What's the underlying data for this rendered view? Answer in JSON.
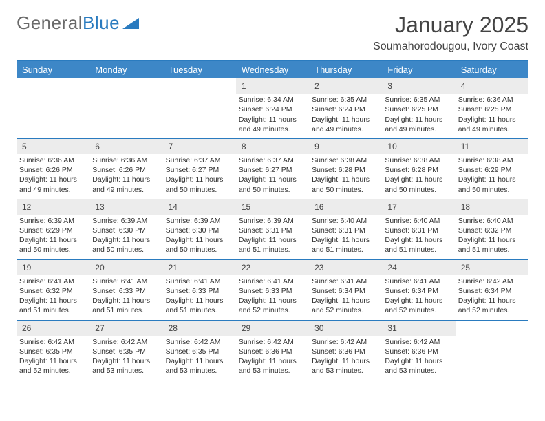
{
  "logo": {
    "text1": "General",
    "text2": "Blue"
  },
  "title": "January 2025",
  "location": "Soumahorodougou, Ivory Coast",
  "colors": {
    "header_bg": "#3d87c7",
    "header_text": "#ffffff",
    "border": "#2a7bbf",
    "daynum_bg": "#ececec",
    "text": "#333333",
    "logo_gray": "#6a6a6a",
    "logo_blue": "#2a7bbf"
  },
  "day_names": [
    "Sunday",
    "Monday",
    "Tuesday",
    "Wednesday",
    "Thursday",
    "Friday",
    "Saturday"
  ],
  "weeks": [
    [
      null,
      null,
      null,
      {
        "n": "1",
        "sr": "6:34 AM",
        "ss": "6:24 PM",
        "dl": "11 hours and 49 minutes."
      },
      {
        "n": "2",
        "sr": "6:35 AM",
        "ss": "6:24 PM",
        "dl": "11 hours and 49 minutes."
      },
      {
        "n": "3",
        "sr": "6:35 AM",
        "ss": "6:25 PM",
        "dl": "11 hours and 49 minutes."
      },
      {
        "n": "4",
        "sr": "6:36 AM",
        "ss": "6:25 PM",
        "dl": "11 hours and 49 minutes."
      }
    ],
    [
      {
        "n": "5",
        "sr": "6:36 AM",
        "ss": "6:26 PM",
        "dl": "11 hours and 49 minutes."
      },
      {
        "n": "6",
        "sr": "6:36 AM",
        "ss": "6:26 PM",
        "dl": "11 hours and 49 minutes."
      },
      {
        "n": "7",
        "sr": "6:37 AM",
        "ss": "6:27 PM",
        "dl": "11 hours and 50 minutes."
      },
      {
        "n": "8",
        "sr": "6:37 AM",
        "ss": "6:27 PM",
        "dl": "11 hours and 50 minutes."
      },
      {
        "n": "9",
        "sr": "6:38 AM",
        "ss": "6:28 PM",
        "dl": "11 hours and 50 minutes."
      },
      {
        "n": "10",
        "sr": "6:38 AM",
        "ss": "6:28 PM",
        "dl": "11 hours and 50 minutes."
      },
      {
        "n": "11",
        "sr": "6:38 AM",
        "ss": "6:29 PM",
        "dl": "11 hours and 50 minutes."
      }
    ],
    [
      {
        "n": "12",
        "sr": "6:39 AM",
        "ss": "6:29 PM",
        "dl": "11 hours and 50 minutes."
      },
      {
        "n": "13",
        "sr": "6:39 AM",
        "ss": "6:30 PM",
        "dl": "11 hours and 50 minutes."
      },
      {
        "n": "14",
        "sr": "6:39 AM",
        "ss": "6:30 PM",
        "dl": "11 hours and 50 minutes."
      },
      {
        "n": "15",
        "sr": "6:39 AM",
        "ss": "6:31 PM",
        "dl": "11 hours and 51 minutes."
      },
      {
        "n": "16",
        "sr": "6:40 AM",
        "ss": "6:31 PM",
        "dl": "11 hours and 51 minutes."
      },
      {
        "n": "17",
        "sr": "6:40 AM",
        "ss": "6:31 PM",
        "dl": "11 hours and 51 minutes."
      },
      {
        "n": "18",
        "sr": "6:40 AM",
        "ss": "6:32 PM",
        "dl": "11 hours and 51 minutes."
      }
    ],
    [
      {
        "n": "19",
        "sr": "6:41 AM",
        "ss": "6:32 PM",
        "dl": "11 hours and 51 minutes."
      },
      {
        "n": "20",
        "sr": "6:41 AM",
        "ss": "6:33 PM",
        "dl": "11 hours and 51 minutes."
      },
      {
        "n": "21",
        "sr": "6:41 AM",
        "ss": "6:33 PM",
        "dl": "11 hours and 51 minutes."
      },
      {
        "n": "22",
        "sr": "6:41 AM",
        "ss": "6:33 PM",
        "dl": "11 hours and 52 minutes."
      },
      {
        "n": "23",
        "sr": "6:41 AM",
        "ss": "6:34 PM",
        "dl": "11 hours and 52 minutes."
      },
      {
        "n": "24",
        "sr": "6:41 AM",
        "ss": "6:34 PM",
        "dl": "11 hours and 52 minutes."
      },
      {
        "n": "25",
        "sr": "6:42 AM",
        "ss": "6:34 PM",
        "dl": "11 hours and 52 minutes."
      }
    ],
    [
      {
        "n": "26",
        "sr": "6:42 AM",
        "ss": "6:35 PM",
        "dl": "11 hours and 52 minutes."
      },
      {
        "n": "27",
        "sr": "6:42 AM",
        "ss": "6:35 PM",
        "dl": "11 hours and 53 minutes."
      },
      {
        "n": "28",
        "sr": "6:42 AM",
        "ss": "6:35 PM",
        "dl": "11 hours and 53 minutes."
      },
      {
        "n": "29",
        "sr": "6:42 AM",
        "ss": "6:36 PM",
        "dl": "11 hours and 53 minutes."
      },
      {
        "n": "30",
        "sr": "6:42 AM",
        "ss": "6:36 PM",
        "dl": "11 hours and 53 minutes."
      },
      {
        "n": "31",
        "sr": "6:42 AM",
        "ss": "6:36 PM",
        "dl": "11 hours and 53 minutes."
      },
      null
    ]
  ],
  "labels": {
    "sunrise": "Sunrise:",
    "sunset": "Sunset:",
    "daylight": "Daylight:"
  }
}
